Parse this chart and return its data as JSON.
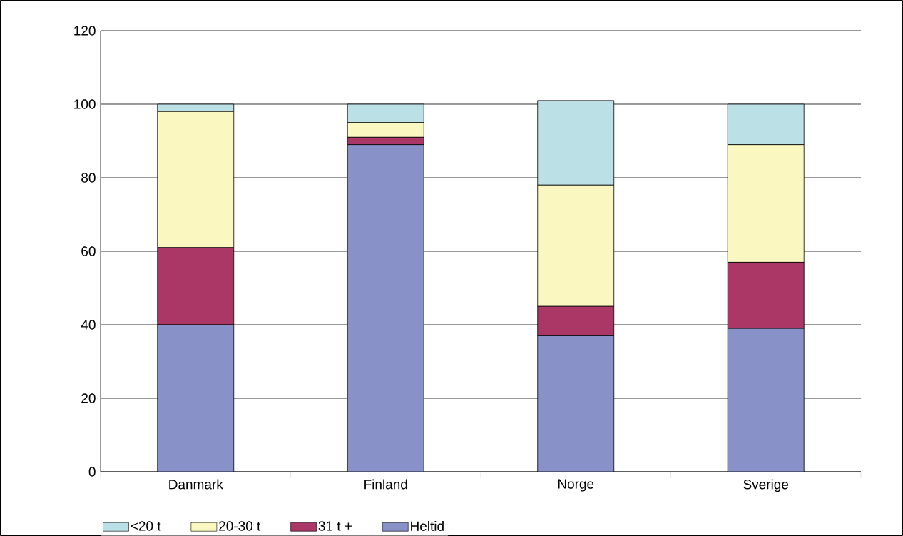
{
  "chart_data": {
    "type": "bar",
    "stacked": true,
    "categories": [
      "Danmark",
      "Finland",
      "Norge",
      "Sverige"
    ],
    "series": [
      {
        "name": "Heltid",
        "color": "#8891c8",
        "values": [
          40,
          89,
          37,
          39
        ]
      },
      {
        "name": "31 t +",
        "color": "#ab3766",
        "values": [
          21,
          2,
          8,
          18
        ]
      },
      {
        "name": "20-30 t",
        "color": "#faf7c0",
        "values": [
          37,
          4,
          33,
          32
        ]
      },
      {
        "name": "<20 t",
        "color": "#bbe1e6",
        "values": [
          2,
          5,
          23,
          11
        ]
      }
    ],
    "ylim": [
      0,
      120
    ],
    "yticks": [
      0,
      20,
      40,
      60,
      80,
      100,
      120
    ],
    "grid": "y",
    "legend": "bottom"
  }
}
